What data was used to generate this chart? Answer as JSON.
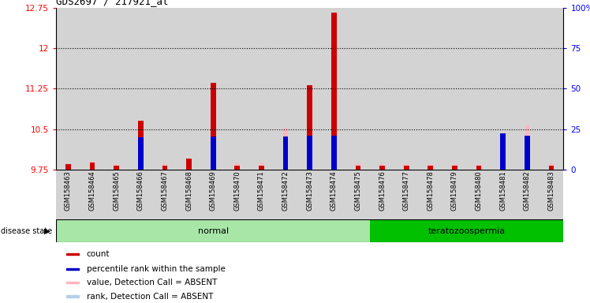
{
  "title": "GDS2697 / 217921_at",
  "samples": [
    "GSM158463",
    "GSM158464",
    "GSM158465",
    "GSM158466",
    "GSM158467",
    "GSM158468",
    "GSM158469",
    "GSM158470",
    "GSM158471",
    "GSM158472",
    "GSM158473",
    "GSM158474",
    "GSM158475",
    "GSM158476",
    "GSM158477",
    "GSM158478",
    "GSM158479",
    "GSM158480",
    "GSM158481",
    "GSM158482",
    "GSM158483"
  ],
  "red_values": [
    9.85,
    9.88,
    9.82,
    10.65,
    9.82,
    9.95,
    11.35,
    9.82,
    9.82,
    9.82,
    11.32,
    12.65,
    9.82,
    9.82,
    9.82,
    9.82,
    9.82,
    9.82,
    9.9,
    9.82,
    9.82
  ],
  "blue_values": [
    null,
    null,
    null,
    10.35,
    null,
    null,
    10.36,
    null,
    null,
    10.37,
    10.38,
    10.38,
    null,
    null,
    null,
    null,
    null,
    null,
    10.42,
    10.38,
    null
  ],
  "pink_values": [
    9.87,
    9.9,
    9.85,
    null,
    9.85,
    null,
    null,
    9.87,
    9.88,
    10.52,
    null,
    null,
    9.87,
    9.85,
    9.85,
    9.85,
    9.85,
    9.85,
    null,
    10.57,
    9.87
  ],
  "lightblue_values": [
    null,
    null,
    null,
    null,
    null,
    null,
    null,
    null,
    null,
    10.37,
    null,
    null,
    null,
    null,
    null,
    null,
    null,
    null,
    10.38,
    10.38,
    null
  ],
  "disease_state_groups": [
    {
      "label": "normal",
      "start": 0,
      "end": 13,
      "color": "#a8e6a8"
    },
    {
      "label": "teratozoospermia",
      "start": 13,
      "end": 21,
      "color": "#00c000"
    }
  ],
  "ylim_left": [
    9.75,
    12.75
  ],
  "ylim_right": [
    0,
    100
  ],
  "yticks_left": [
    9.75,
    10.5,
    11.25,
    12.0,
    12.75
  ],
  "ytick_labels_left": [
    "9.75",
    "10.5",
    "11.25",
    "12",
    "12.75"
  ],
  "yticks_right": [
    0,
    25,
    50,
    75,
    100
  ],
  "ytick_labels_right": [
    "0",
    "25",
    "50",
    "75",
    "100%"
  ],
  "grid_lines": [
    10.5,
    11.25,
    12.0
  ],
  "col_bg": "#d3d3d3",
  "plot_bg": "#ffffff",
  "legend_items": [
    {
      "color": "#cc0000",
      "label": "count"
    },
    {
      "color": "#0000cc",
      "label": "percentile rank within the sample"
    },
    {
      "color": "#ffb6c1",
      "label": "value, Detection Call = ABSENT"
    },
    {
      "color": "#b8cfe8",
      "label": "rank, Detection Call = ABSENT"
    }
  ],
  "red_bar_width": 0.22,
  "pink_bar_width": 0.18,
  "blue_square_size": 0.3
}
